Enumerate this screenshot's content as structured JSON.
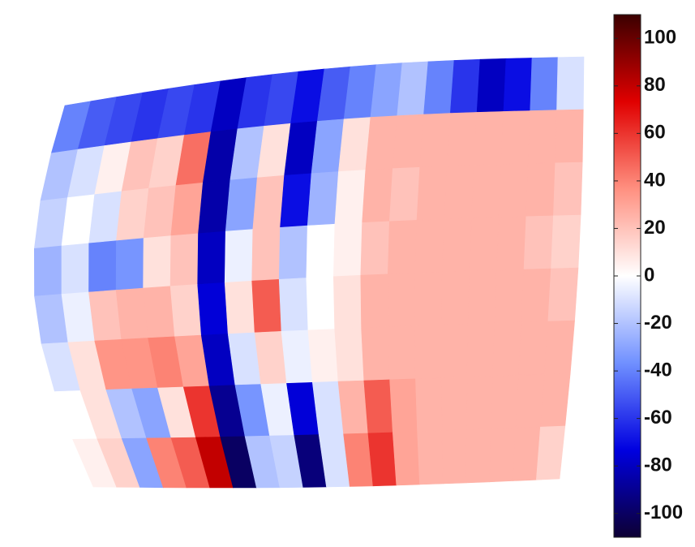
{
  "chart_data": {
    "type": "heatmap",
    "values": [
      [
        -40,
        -50,
        -55,
        -60,
        -55,
        -60,
        -80,
        -60,
        -55,
        -70,
        -50,
        -40,
        -30,
        -20,
        -40,
        -60,
        -80,
        -70,
        -40,
        -10
      ],
      [
        -20,
        -10,
        5,
        20,
        15,
        45,
        -85,
        -20,
        10,
        -80,
        -30,
        10,
        25,
        25,
        25,
        25,
        25,
        25,
        25,
        25
      ],
      [
        -15,
        0,
        -10,
        15,
        20,
        30,
        -85,
        -30,
        20,
        -70,
        -25,
        5,
        25,
        20,
        25,
        25,
        25,
        25,
        25,
        20
      ],
      [
        -25,
        -10,
        -40,
        -35,
        10,
        20,
        -80,
        -5,
        20,
        -20,
        0,
        5,
        20,
        25,
        25,
        25,
        25,
        25,
        20,
        15
      ],
      [
        -20,
        -5,
        20,
        25,
        25,
        15,
        -75,
        10,
        50,
        -10,
        0,
        10,
        25,
        25,
        25,
        25,
        25,
        25,
        25,
        20
      ],
      [
        -10,
        10,
        35,
        35,
        40,
        30,
        -80,
        -10,
        15,
        -5,
        5,
        10,
        25,
        25,
        25,
        25,
        25,
        25,
        25,
        25
      ],
      [
        0,
        10,
        -20,
        -30,
        10,
        60,
        -90,
        -35,
        -5,
        -75,
        -10,
        25,
        50,
        30,
        25,
        25,
        25,
        25,
        25,
        25
      ],
      [
        5,
        15,
        -30,
        40,
        50,
        80,
        -100,
        -20,
        -15,
        -95,
        -10,
        40,
        60,
        30,
        25,
        25,
        25,
        25,
        25,
        15
      ]
    ],
    "clim": [
      -110,
      110
    ],
    "cticks": [
      -100,
      -80,
      -60,
      -40,
      -20,
      0,
      20,
      40,
      60,
      80,
      100
    ],
    "colormap": [
      "#0d0033",
      "#0000e0",
      "#7090ff",
      "#ffffff",
      "#ff9080",
      "#e00000",
      "#3b0000"
    ]
  }
}
